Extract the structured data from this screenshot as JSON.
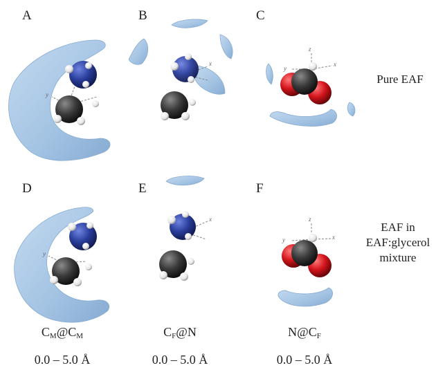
{
  "panels": [
    {
      "id": "A",
      "label": "A"
    },
    {
      "id": "B",
      "label": "B"
    },
    {
      "id": "C",
      "label": "C"
    },
    {
      "id": "D",
      "label": "D"
    },
    {
      "id": "E",
      "label": "E"
    },
    {
      "id": "F",
      "label": "F"
    }
  ],
  "row_labels": {
    "top": "Pure EAF",
    "bottom_line1": "EAF in",
    "bottom_line2": "EAF:glycerol",
    "bottom_line3": "mixture"
  },
  "captions": [
    {
      "main": "C",
      "sub": "M",
      "mid": "@C",
      "sub2": "M"
    },
    {
      "main": "C",
      "sub": "F",
      "mid": "@N",
      "sub2": ""
    },
    {
      "main": "N@C",
      "sub": "F",
      "mid": "",
      "sub2": ""
    }
  ],
  "ranges": [
    "0.0 – 5.0 Å",
    "0.0 – 5.0 Å",
    "0.0 – 5.0 Å"
  ],
  "axis_letters": {
    "x": "x",
    "y": "y",
    "z": "z"
  },
  "colors": {
    "surface": "#a9c8e6",
    "surface_edge": "#7fa6cc",
    "nitrogen": "#2a3e9c",
    "carbon": "#3a3a3a",
    "oxygen": "#d4141c",
    "hydrogen": "#f2f2f2"
  }
}
